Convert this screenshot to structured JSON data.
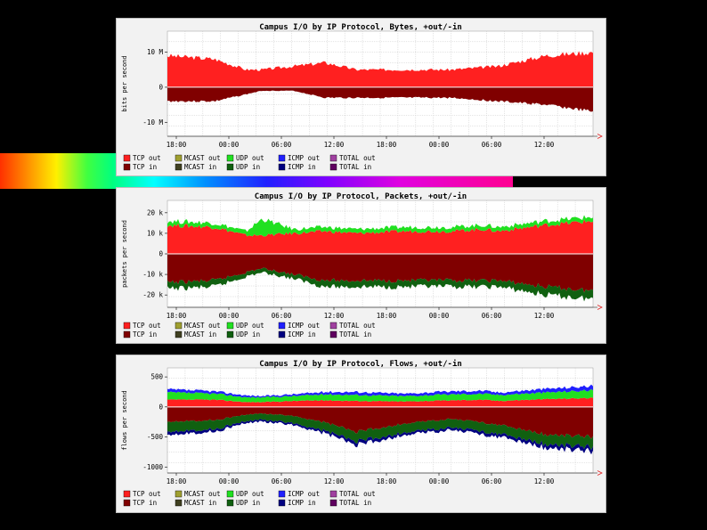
{
  "colors": {
    "tcp_out": "#ff2020",
    "tcp_in": "#800000",
    "mcast_out": "#a0a030",
    "mcast_in": "#404020",
    "udp_out": "#20e020",
    "udp_in": "#106010",
    "icmp_out": "#2020ff",
    "icmp_in": "#000080",
    "total_out": "#a040a0",
    "total_in": "#600060"
  },
  "legend": [
    [
      "TCP out",
      "MCAST out",
      "UDP out",
      "ICMP out",
      "TOTAL out"
    ],
    [
      "TCP in",
      "MCAST in",
      "UDP in",
      "ICMP in",
      "TOTAL in"
    ]
  ],
  "chart_data": [
    {
      "type": "area",
      "title": "Campus I/O by IP Protocol, Bytes, +out/-in",
      "ylabel": "bits per second",
      "yticks": [
        "10 M",
        "0",
        "-10 M"
      ],
      "ytick_values": [
        10,
        0,
        -10
      ],
      "ylim": [
        -14,
        16
      ],
      "xticks": [
        "18:00",
        "00:00",
        "06:00",
        "12:00",
        "18:00",
        "00:00",
        "06:00",
        "12:00"
      ],
      "grid": true,
      "x_hours": [
        0,
        6,
        10,
        12,
        16,
        20,
        24,
        30,
        36,
        42,
        48,
        54
      ],
      "series": [
        {
          "key": "tcp_out",
          "values": [
            9,
            8,
            5,
            5,
            6,
            7,
            5,
            5,
            5,
            6,
            9,
            10
          ]
        },
        {
          "key": "tcp_in",
          "values": [
            -4,
            -4,
            -2,
            -1,
            -1,
            -3,
            -3,
            -3,
            -3,
            -4,
            -5,
            -7
          ]
        }
      ]
    },
    {
      "type": "area",
      "title": "Campus I/O by IP Protocol, Packets, +out/-in",
      "ylabel": "packets per second",
      "yticks": [
        "20 k",
        "10 k",
        "0",
        "-10 k",
        "-20 k"
      ],
      "ytick_values": [
        20,
        10,
        0,
        -10,
        -20
      ],
      "ylim": [
        -26,
        26
      ],
      "xticks": [
        "18:00",
        "00:00",
        "06:00",
        "12:00",
        "18:00",
        "00:00",
        "06:00",
        "12:00"
      ],
      "grid": true,
      "x_hours": [
        0,
        6,
        10,
        12,
        16,
        20,
        24,
        30,
        36,
        40,
        42,
        48,
        54
      ],
      "series": [
        {
          "key": "tcp_out",
          "values": [
            14,
            13,
            9,
            9,
            10,
            11,
            10,
            11,
            11,
            12,
            11,
            14,
            16
          ]
        },
        {
          "key": "udp_out",
          "values": [
            2,
            2,
            2,
            8,
            2,
            2,
            2,
            2,
            2,
            2,
            2,
            2,
            2
          ]
        },
        {
          "key": "tcp_in",
          "values": [
            -14,
            -13,
            -9,
            -7,
            -10,
            -13,
            -13,
            -13,
            -13,
            -13,
            -13,
            -16,
            -18
          ]
        },
        {
          "key": "udp_in",
          "values": [
            -3,
            -3,
            -2,
            -2,
            -2,
            -3,
            -3,
            -3,
            -3,
            -3,
            -3,
            -4,
            -4
          ]
        }
      ]
    },
    {
      "type": "area",
      "title": "Campus I/O by IP Protocol, Flows, +out/-in",
      "ylabel": "flows per second",
      "yticks": [
        "500",
        "0",
        "-500",
        "-1000"
      ],
      "ytick_values": [
        500,
        0,
        -500,
        -1000
      ],
      "ylim": [
        -1100,
        650
      ],
      "xticks": [
        "18:00",
        "00:00",
        "06:00",
        "12:00",
        "18:00",
        "00:00",
        "06:00",
        "12:00"
      ],
      "grid": true,
      "x_hours": [
        0,
        6,
        10,
        12,
        16,
        20,
        24,
        30,
        36,
        40,
        42,
        48,
        54
      ],
      "series": [
        {
          "key": "tcp_out",
          "values": [
            120,
            120,
            80,
            80,
            100,
            110,
            100,
            90,
            110,
            120,
            100,
            130,
            150
          ]
        },
        {
          "key": "udp_out",
          "values": [
            120,
            100,
            80,
            80,
            80,
            100,
            100,
            90,
            100,
            100,
            100,
            110,
            130
          ]
        },
        {
          "key": "icmp_out",
          "values": [
            50,
            40,
            30,
            20,
            30,
            40,
            50,
            40,
            50,
            50,
            40,
            60,
            70
          ]
        },
        {
          "key": "tcp_in",
          "values": [
            -240,
            -220,
            -130,
            -110,
            -150,
            -260,
            -420,
            -280,
            -200,
            -260,
            -300,
            -460,
            -500
          ]
        },
        {
          "key": "udp_in",
          "values": [
            -160,
            -150,
            -110,
            -100,
            -120,
            -140,
            -160,
            -150,
            -140,
            -150,
            -150,
            -160,
            -170
          ]
        },
        {
          "key": "icmp_in",
          "values": [
            -50,
            -40,
            -30,
            -30,
            -30,
            -40,
            -60,
            -40,
            -40,
            -50,
            -50,
            -60,
            -70
          ]
        }
      ]
    }
  ]
}
